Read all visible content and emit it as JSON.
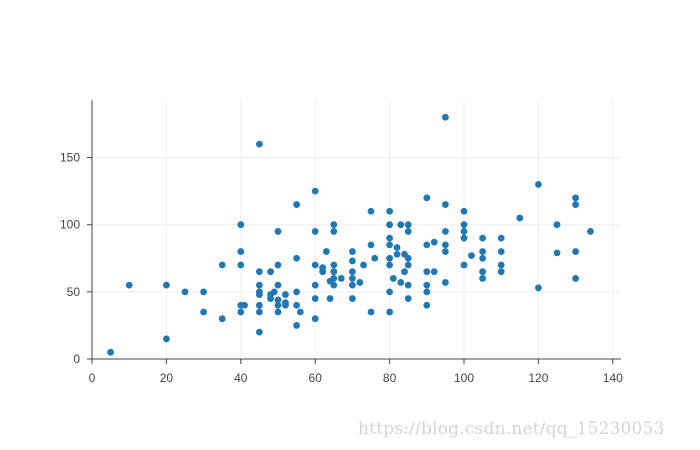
{
  "chart_data": {
    "type": "scatter",
    "title": "",
    "xlabel": "",
    "ylabel": "",
    "xlim": [
      0,
      142
    ],
    "ylim": [
      0,
      190
    ],
    "x_ticks": [
      0,
      20,
      40,
      60,
      80,
      100,
      120,
      140
    ],
    "y_ticks": [
      0,
      50,
      100,
      150
    ],
    "grid": true,
    "marker_color": "#1f77b4",
    "grid_color": "#eeeeee",
    "axis_color": "#444444",
    "points": [
      [
        5,
        5
      ],
      [
        10,
        55
      ],
      [
        20,
        15
      ],
      [
        20,
        55
      ],
      [
        25,
        50
      ],
      [
        30,
        35
      ],
      [
        30,
        50
      ],
      [
        35,
        30
      ],
      [
        35,
        70
      ],
      [
        40,
        35
      ],
      [
        40,
        40
      ],
      [
        40,
        70
      ],
      [
        40,
        80
      ],
      [
        40,
        100
      ],
      [
        41,
        40
      ],
      [
        45,
        20
      ],
      [
        45,
        35
      ],
      [
        45,
        40
      ],
      [
        45,
        48
      ],
      [
        45,
        50
      ],
      [
        45,
        55
      ],
      [
        45,
        65
      ],
      [
        45,
        160
      ],
      [
        48,
        45
      ],
      [
        48,
        48
      ],
      [
        48,
        65
      ],
      [
        49,
        50
      ],
      [
        50,
        35
      ],
      [
        50,
        40
      ],
      [
        50,
        44
      ],
      [
        50,
        55
      ],
      [
        50,
        70
      ],
      [
        50,
        95
      ],
      [
        52,
        40
      ],
      [
        52,
        42
      ],
      [
        52,
        48
      ],
      [
        55,
        25
      ],
      [
        55,
        40
      ],
      [
        55,
        50
      ],
      [
        55,
        75
      ],
      [
        55,
        115
      ],
      [
        56,
        35
      ],
      [
        60,
        30
      ],
      [
        60,
        45
      ],
      [
        60,
        55
      ],
      [
        60,
        70
      ],
      [
        60,
        95
      ],
      [
        60,
        125
      ],
      [
        62,
        65
      ],
      [
        62,
        68
      ],
      [
        63,
        80
      ],
      [
        64,
        45
      ],
      [
        64,
        58
      ],
      [
        65,
        55
      ],
      [
        65,
        60
      ],
      [
        65,
        65
      ],
      [
        65,
        70
      ],
      [
        65,
        95
      ],
      [
        65,
        100
      ],
      [
        67,
        60
      ],
      [
        70,
        45
      ],
      [
        70,
        55
      ],
      [
        70,
        60
      ],
      [
        70,
        65
      ],
      [
        70,
        73
      ],
      [
        70,
        80
      ],
      [
        72,
        57
      ],
      [
        73,
        70
      ],
      [
        75,
        35
      ],
      [
        75,
        85
      ],
      [
        75,
        110
      ],
      [
        76,
        75
      ],
      [
        80,
        35
      ],
      [
        80,
        50
      ],
      [
        80,
        70
      ],
      [
        80,
        75
      ],
      [
        80,
        85
      ],
      [
        80,
        90
      ],
      [
        80,
        100
      ],
      [
        80,
        110
      ],
      [
        81,
        60
      ],
      [
        82,
        78
      ],
      [
        82,
        83
      ],
      [
        83,
        57
      ],
      [
        83,
        100
      ],
      [
        84,
        65
      ],
      [
        84,
        78
      ],
      [
        85,
        45
      ],
      [
        85,
        55
      ],
      [
        85,
        70
      ],
      [
        85,
        75
      ],
      [
        85,
        95
      ],
      [
        85,
        100
      ],
      [
        90,
        40
      ],
      [
        90,
        50
      ],
      [
        90,
        55
      ],
      [
        90,
        65
      ],
      [
        90,
        85
      ],
      [
        90,
        120
      ],
      [
        92,
        65
      ],
      [
        92,
        87
      ],
      [
        95,
        57
      ],
      [
        95,
        80
      ],
      [
        95,
        85
      ],
      [
        95,
        95
      ],
      [
        95,
        115
      ],
      [
        95,
        180
      ],
      [
        100,
        70
      ],
      [
        100,
        90
      ],
      [
        100,
        95
      ],
      [
        100,
        100
      ],
      [
        100,
        110
      ],
      [
        102,
        77
      ],
      [
        105,
        60
      ],
      [
        105,
        65
      ],
      [
        105,
        75
      ],
      [
        105,
        80
      ],
      [
        105,
        90
      ],
      [
        110,
        65
      ],
      [
        110,
        70
      ],
      [
        110,
        80
      ],
      [
        110,
        90
      ],
      [
        115,
        105
      ],
      [
        120,
        53
      ],
      [
        120,
        130
      ],
      [
        125,
        79
      ],
      [
        125,
        100
      ],
      [
        130,
        60
      ],
      [
        130,
        80
      ],
      [
        130,
        115
      ],
      [
        130,
        120
      ],
      [
        134,
        95
      ]
    ]
  },
  "watermark": {
    "text": "https://blog.csdn.net/qq_15230053"
  }
}
